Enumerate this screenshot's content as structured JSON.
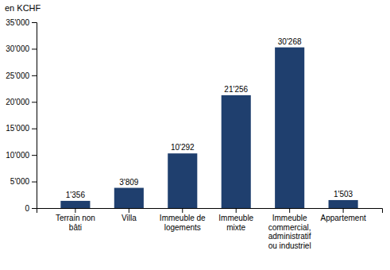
{
  "chart_data": {
    "type": "bar",
    "y_label": "en KCHF",
    "categories": [
      "Terrain non\nbâti",
      "Villa",
      "Immeuble de\nlogements",
      "Immeuble\nmixte",
      "Immeuble\ncommercial,\nadministratif\nou industriel",
      "Appartement"
    ],
    "values": [
      1356,
      3809,
      10292,
      21256,
      30268,
      1503
    ],
    "value_labels": [
      "1'356",
      "3'809",
      "10'292",
      "21'256",
      "30'268",
      "1'503"
    ],
    "data_labels": true,
    "color": "#1f3f6e",
    "ylim": [
      0,
      35000
    ],
    "yticks": [
      0,
      {
        "value": 5000,
        "label": "5'000"
      },
      {
        "value": 10000,
        "label": "10'000"
      },
      {
        "value": 15000,
        "label": "15'000"
      },
      {
        "value": 20000,
        "label": "20'000"
      },
      {
        "value": 25000,
        "label": "25'000"
      },
      {
        "value": 30000,
        "label": "30'000"
      },
      {
        "value": 35000,
        "label": "35'000"
      }
    ],
    "grid": false
  }
}
